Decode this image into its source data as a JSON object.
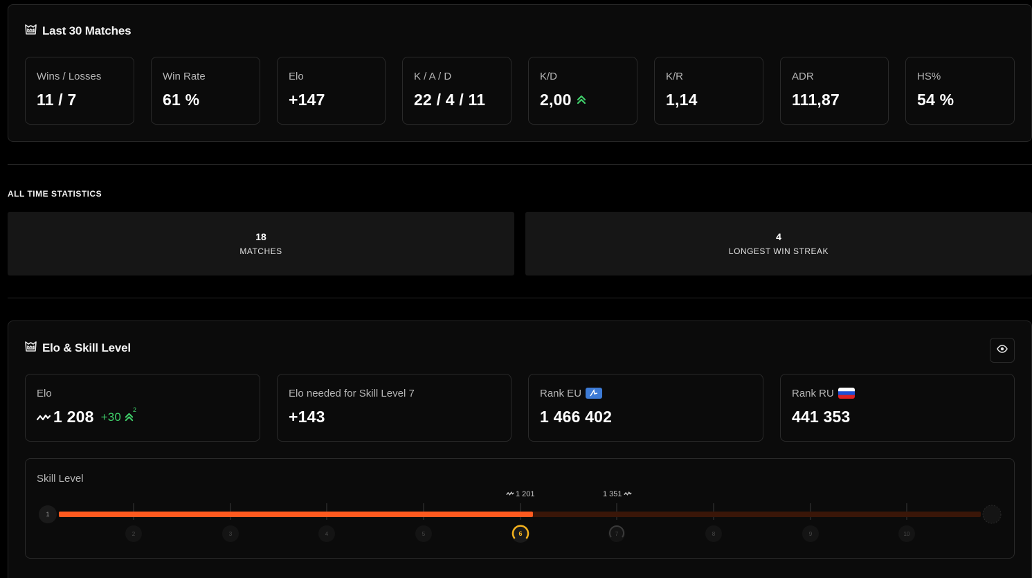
{
  "last30": {
    "title": "Last 30 Matches",
    "stats": [
      {
        "label": "Wins / Losses",
        "value": "11 / 7"
      },
      {
        "label": "Win Rate",
        "value": "61 %"
      },
      {
        "label": "Elo",
        "value": "+147"
      },
      {
        "label": "K / A / D",
        "value": "22 / 4 / 11"
      },
      {
        "label": "K/D",
        "value": "2,00"
      },
      {
        "label": "K/R",
        "value": "1,14"
      },
      {
        "label": "ADR",
        "value": "111,87"
      },
      {
        "label": "HS%",
        "value": "54 %"
      }
    ]
  },
  "alltime": {
    "title": "ALL TIME STATISTICS",
    "tiles": [
      {
        "value": "18",
        "caption": "MATCHES"
      },
      {
        "value": "4",
        "caption": "LONGEST WIN STREAK"
      }
    ]
  },
  "elo_section": {
    "title": "Elo & Skill Level",
    "cards": [
      {
        "label": "Elo",
        "value": "1 208",
        "delta": "+30",
        "delta_sup": "2"
      },
      {
        "label": "Elo needed for Skill Level 7",
        "value": "+143"
      },
      {
        "label": "Rank EU",
        "value": "1 466 402"
      },
      {
        "label": "Rank RU",
        "value": "441 353"
      }
    ],
    "skill": {
      "label": "Skill Level",
      "levels": [
        "1",
        "2",
        "3",
        "4",
        "5",
        "6",
        "7",
        "8",
        "9",
        "10"
      ],
      "current_level": 6,
      "progress_fraction": 0.5,
      "marker_low": "1 201",
      "marker_high": "1 351"
    }
  },
  "colors": {
    "accent_orange": "#ff5a1f",
    "track_dark": "#3a1608",
    "level_current": "#f5b21c",
    "positive": "#3fcf6a"
  }
}
